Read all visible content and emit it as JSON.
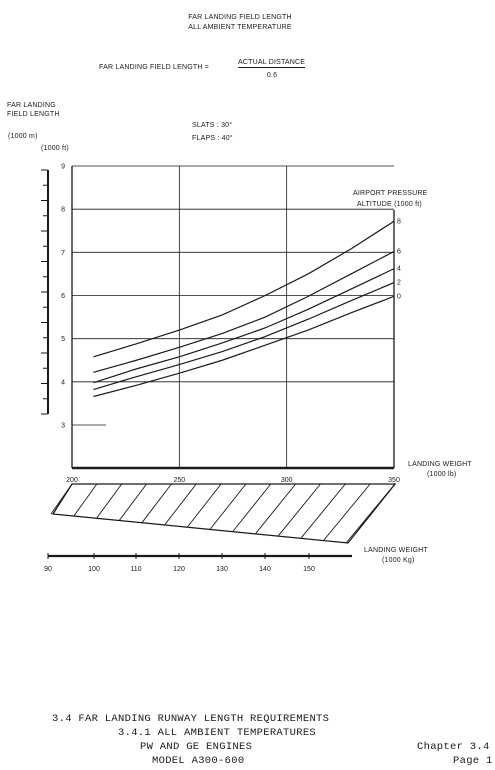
{
  "header": {
    "title_line1": "FAR LANDING FIELD LENGTH",
    "title_line2": "ALL AMBIENT TEMPERATURE",
    "formula_lhs": "FAR LANDING FIELD LENGTH =",
    "formula_num": "ACTUAL DISTANCE",
    "formula_den": "0.6"
  },
  "axis": {
    "ylabel_line1": "FAR LANDING",
    "ylabel_line2": "FIELD LENGTH",
    "y_unit_m": "(1000 m)",
    "y_unit_ft": "(1000 ft)",
    "slats": "SLATS : 30°",
    "flaps": "FLAPS : 40°",
    "legend_line1": "AIRPORT PRESSURE",
    "legend_line2": "ALTITUDE (1000 ft)",
    "xlabel_lb_line1": "LANDING WEIGHT",
    "xlabel_lb_line2": "(1000 lb)",
    "xlabel_kg_line1": "LANDING WEIGHT",
    "xlabel_kg_line2": "(1000 Kg)"
  },
  "chart_data": {
    "type": "line",
    "title": "FAR LANDING FIELD LENGTH",
    "subtitle": "ALL AMBIENT TEMPERATURE",
    "xlabel": "LANDING WEIGHT (1000 lb)",
    "ylabel": "FAR LANDING FIELD LENGTH (1000 ft)",
    "xlim": [
      200,
      350
    ],
    "ylim": [
      3,
      9
    ],
    "x_ticks": [
      200,
      250,
      300,
      350
    ],
    "y_ticks": [
      3,
      4,
      5,
      6,
      7,
      8,
      9
    ],
    "grid": true,
    "legend_title": "AIRPORT PRESSURE ALTITUDE (1000 ft)",
    "legend_position": "top-right",
    "series": [
      {
        "name": "8",
        "x": [
          210,
          230,
          250,
          270,
          290,
          310,
          330,
          350
        ],
        "y": [
          4.58,
          4.88,
          5.2,
          5.55,
          6.0,
          6.5,
          7.08,
          7.72
        ]
      },
      {
        "name": "6",
        "x": [
          210,
          230,
          250,
          270,
          290,
          310,
          330,
          350
        ],
        "y": [
          4.22,
          4.5,
          4.8,
          5.12,
          5.5,
          5.98,
          6.5,
          7.02
        ]
      },
      {
        "name": "4",
        "x": [
          210,
          230,
          250,
          270,
          290,
          310,
          330,
          350
        ],
        "y": [
          3.98,
          4.3,
          4.58,
          4.9,
          5.25,
          5.68,
          6.15,
          6.62
        ]
      },
      {
        "name": "2",
        "x": [
          210,
          230,
          250,
          270,
          290,
          310,
          330,
          350
        ],
        "y": [
          3.82,
          4.12,
          4.4,
          4.7,
          5.05,
          5.45,
          5.88,
          6.3
        ]
      },
      {
        "name": "0",
        "x": [
          210,
          230,
          250,
          270,
          290,
          310,
          330,
          350
        ],
        "y": [
          3.66,
          3.92,
          4.2,
          4.5,
          4.85,
          5.2,
          5.6,
          5.98
        ]
      }
    ],
    "kg_axis": {
      "ticks": [
        90,
        100,
        110,
        120,
        130,
        140,
        150
      ],
      "xlabel": "LANDING WEIGHT (1000 Kg)"
    }
  },
  "footer": {
    "line1": "3.4 FAR  LANDING RUNWAY LENGTH REQUIREMENTS",
    "line2": "3.4.1 ALL AMBIENT TEMPERATURES",
    "line3": "PW AND GE ENGINES",
    "line4": "MODEL A300-600",
    "chapter": "Chapter 3.4",
    "page": "Page 1"
  }
}
